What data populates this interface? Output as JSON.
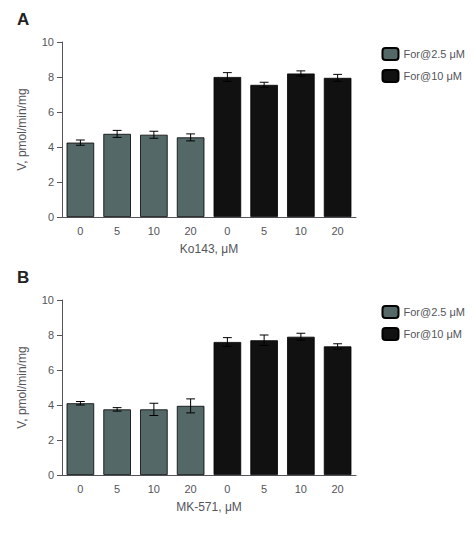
{
  "chart_data": [
    {
      "type": "bar",
      "title": "A",
      "xlabel": "Ko143, μM",
      "ylabel": "V, pmol/min/mg",
      "categories": [
        "0",
        "5",
        "10",
        "20",
        "0",
        "5",
        "10",
        "20"
      ],
      "series": [
        {
          "name": "For@2.5 μM",
          "color": "#546868",
          "values": [
            4.25,
            4.75,
            4.7,
            4.55,
            null,
            null,
            null,
            null
          ],
          "errors": [
            0.15,
            0.2,
            0.2,
            0.2,
            null,
            null,
            null,
            null
          ]
        },
        {
          "name": "For@10 μM",
          "color": "#111111",
          "values": [
            null,
            null,
            null,
            null,
            8.0,
            7.55,
            8.2,
            7.95
          ],
          "errors": [
            null,
            null,
            null,
            null,
            0.25,
            0.15,
            0.15,
            0.2
          ]
        }
      ],
      "ylim": [
        0,
        10
      ],
      "yticks": [
        0,
        2,
        4,
        6,
        8,
        10
      ],
      "grid": false,
      "legend": "right"
    },
    {
      "type": "bar",
      "title": "B",
      "xlabel": "MK-571, μM",
      "ylabel": "V, pmol/min/mg",
      "categories": [
        "0",
        "5",
        "10",
        "20",
        "0",
        "5",
        "10",
        "20"
      ],
      "series": [
        {
          "name": "For@2.5 μM",
          "color": "#546868",
          "values": [
            4.1,
            3.75,
            3.75,
            3.95,
            null,
            null,
            null,
            null
          ],
          "errors": [
            0.1,
            0.1,
            0.35,
            0.4,
            null,
            null,
            null,
            null
          ]
        },
        {
          "name": "For@10 μM",
          "color": "#111111",
          "values": [
            null,
            null,
            null,
            null,
            7.6,
            7.7,
            7.9,
            7.35
          ],
          "errors": [
            null,
            null,
            null,
            null,
            0.25,
            0.3,
            0.2,
            0.15
          ]
        }
      ],
      "ylim": [
        0,
        10
      ],
      "yticks": [
        0,
        2,
        4,
        6,
        8,
        10
      ],
      "grid": false,
      "legend": "right"
    }
  ]
}
